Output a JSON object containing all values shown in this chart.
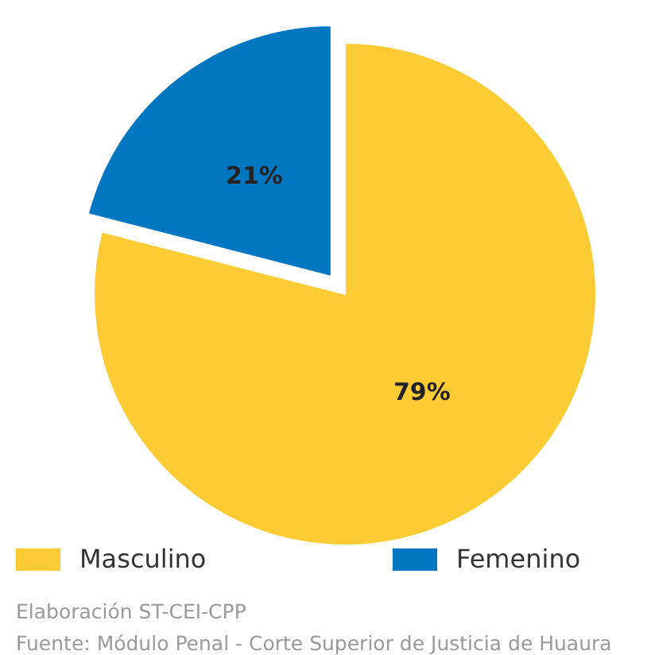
{
  "chart_data": {
    "type": "pie",
    "categories": [
      "Masculino",
      "Femenino"
    ],
    "values": [
      79,
      21
    ],
    "colors": [
      "#fdcb33",
      "#0077c0"
    ],
    "value_labels": [
      "79%",
      "21%"
    ],
    "legend": "bottom",
    "annotations": [
      "Elaboración ST-CEI-CPP",
      "Fuente: Módulo Penal - Corte Superior de Justicia de Huaura"
    ]
  }
}
